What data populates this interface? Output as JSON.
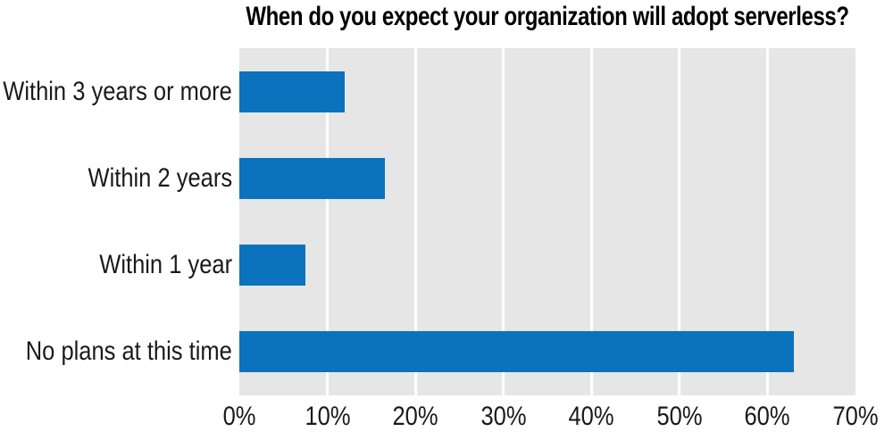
{
  "title": "When do you expect your organization will adopt serverless?",
  "colors": {
    "bar": "#0b73bd",
    "plot_background": "#e6e6e6",
    "gridline": "#ffffff",
    "label_text": "#1a1a1a",
    "title_text": "#000000"
  },
  "chart_data": {
    "type": "bar",
    "orientation": "horizontal",
    "title": "When do you expect your organization will adopt serverless?",
    "categories": [
      "Within 3 years or more",
      "Within 2 years",
      "Within 1 year",
      "No plans at this time"
    ],
    "values": [
      12,
      16.5,
      7.5,
      63
    ],
    "unit": "%",
    "xlabel": "",
    "ylabel": "",
    "xlim": [
      0,
      70
    ],
    "x_ticks": [
      0,
      10,
      20,
      30,
      40,
      50,
      60,
      70
    ],
    "x_tick_labels": [
      "0%",
      "10%",
      "20%",
      "30%",
      "40%",
      "50%",
      "60%",
      "70%"
    ],
    "grid": "vertical white gridlines on gray panel",
    "legend": "none",
    "bar_color": "#0b73bd"
  }
}
